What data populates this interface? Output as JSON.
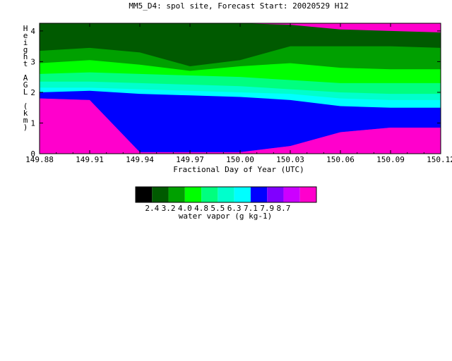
{
  "chart_data": {
    "type": "heatmap",
    "title": "MM5_D4: spol site,  Forecast Start: 20020529 H12",
    "xlabel": "Fractional Day of Year (UTC)",
    "ylabel": "Height AGL (km)",
    "xlim": [
      149.88,
      150.12
    ],
    "ylim": [
      0,
      4.25
    ],
    "x_ticks": [
      "149.88",
      "149.91",
      "149.94",
      "149.97",
      "150.00",
      "150.03",
      "150.06",
      "150.09",
      "150.12"
    ],
    "y_ticks": [
      "0",
      "1",
      "2",
      "3",
      "4"
    ],
    "colorbar": {
      "label": "water vapor (g kg-1)",
      "tick_labels": [
        "2.4",
        "3.2",
        "4.0",
        "4.8",
        "5.5",
        "6.3",
        "7.1",
        "7.9",
        "8.7"
      ],
      "colors": [
        "#000000",
        "#005a00",
        "#00a000",
        "#00ff00",
        "#00ff7f",
        "#00ffcc",
        "#00ffff",
        "#0000ff",
        "#8000ff",
        "#cc00ff",
        "#ff00cc"
      ]
    },
    "contour_boundaries_km": {
      "x": [
        149.88,
        149.91,
        149.94,
        149.97,
        150.0,
        150.03,
        150.06,
        150.09,
        150.12
      ],
      "top_of_darkest_green": [
        4.25,
        4.25,
        4.25,
        4.25,
        4.25,
        4.2,
        4.05,
        4.0,
        3.95
      ],
      "dark_green_to_green": [
        3.35,
        3.45,
        3.3,
        2.85,
        3.05,
        3.5,
        3.5,
        3.5,
        3.45
      ],
      "green_to_bright_green": [
        2.95,
        3.05,
        2.9,
        2.7,
        2.85,
        2.95,
        2.8,
        2.75,
        2.75
      ],
      "bright_green_to_spring_green": [
        2.6,
        2.65,
        2.6,
        2.55,
        2.5,
        2.4,
        2.3,
        2.3,
        2.3
      ],
      "spring_green_to_aqua": [
        2.35,
        2.35,
        2.3,
        2.25,
        2.2,
        2.1,
        2.0,
        1.95,
        1.95
      ],
      "aqua_to_blue": [
        2.15,
        2.15,
        2.1,
        2.05,
        2.0,
        1.95,
        1.8,
        1.75,
        1.75
      ],
      "blue_to_violet": [
        2.0,
        2.05,
        1.95,
        1.9,
        1.85,
        1.75,
        1.55,
        1.5,
        1.5
      ],
      "violet_to_magenta": [
        1.8,
        1.75,
        0.05,
        0.05,
        0.05,
        0.25,
        0.7,
        0.85,
        0.85
      ]
    }
  }
}
